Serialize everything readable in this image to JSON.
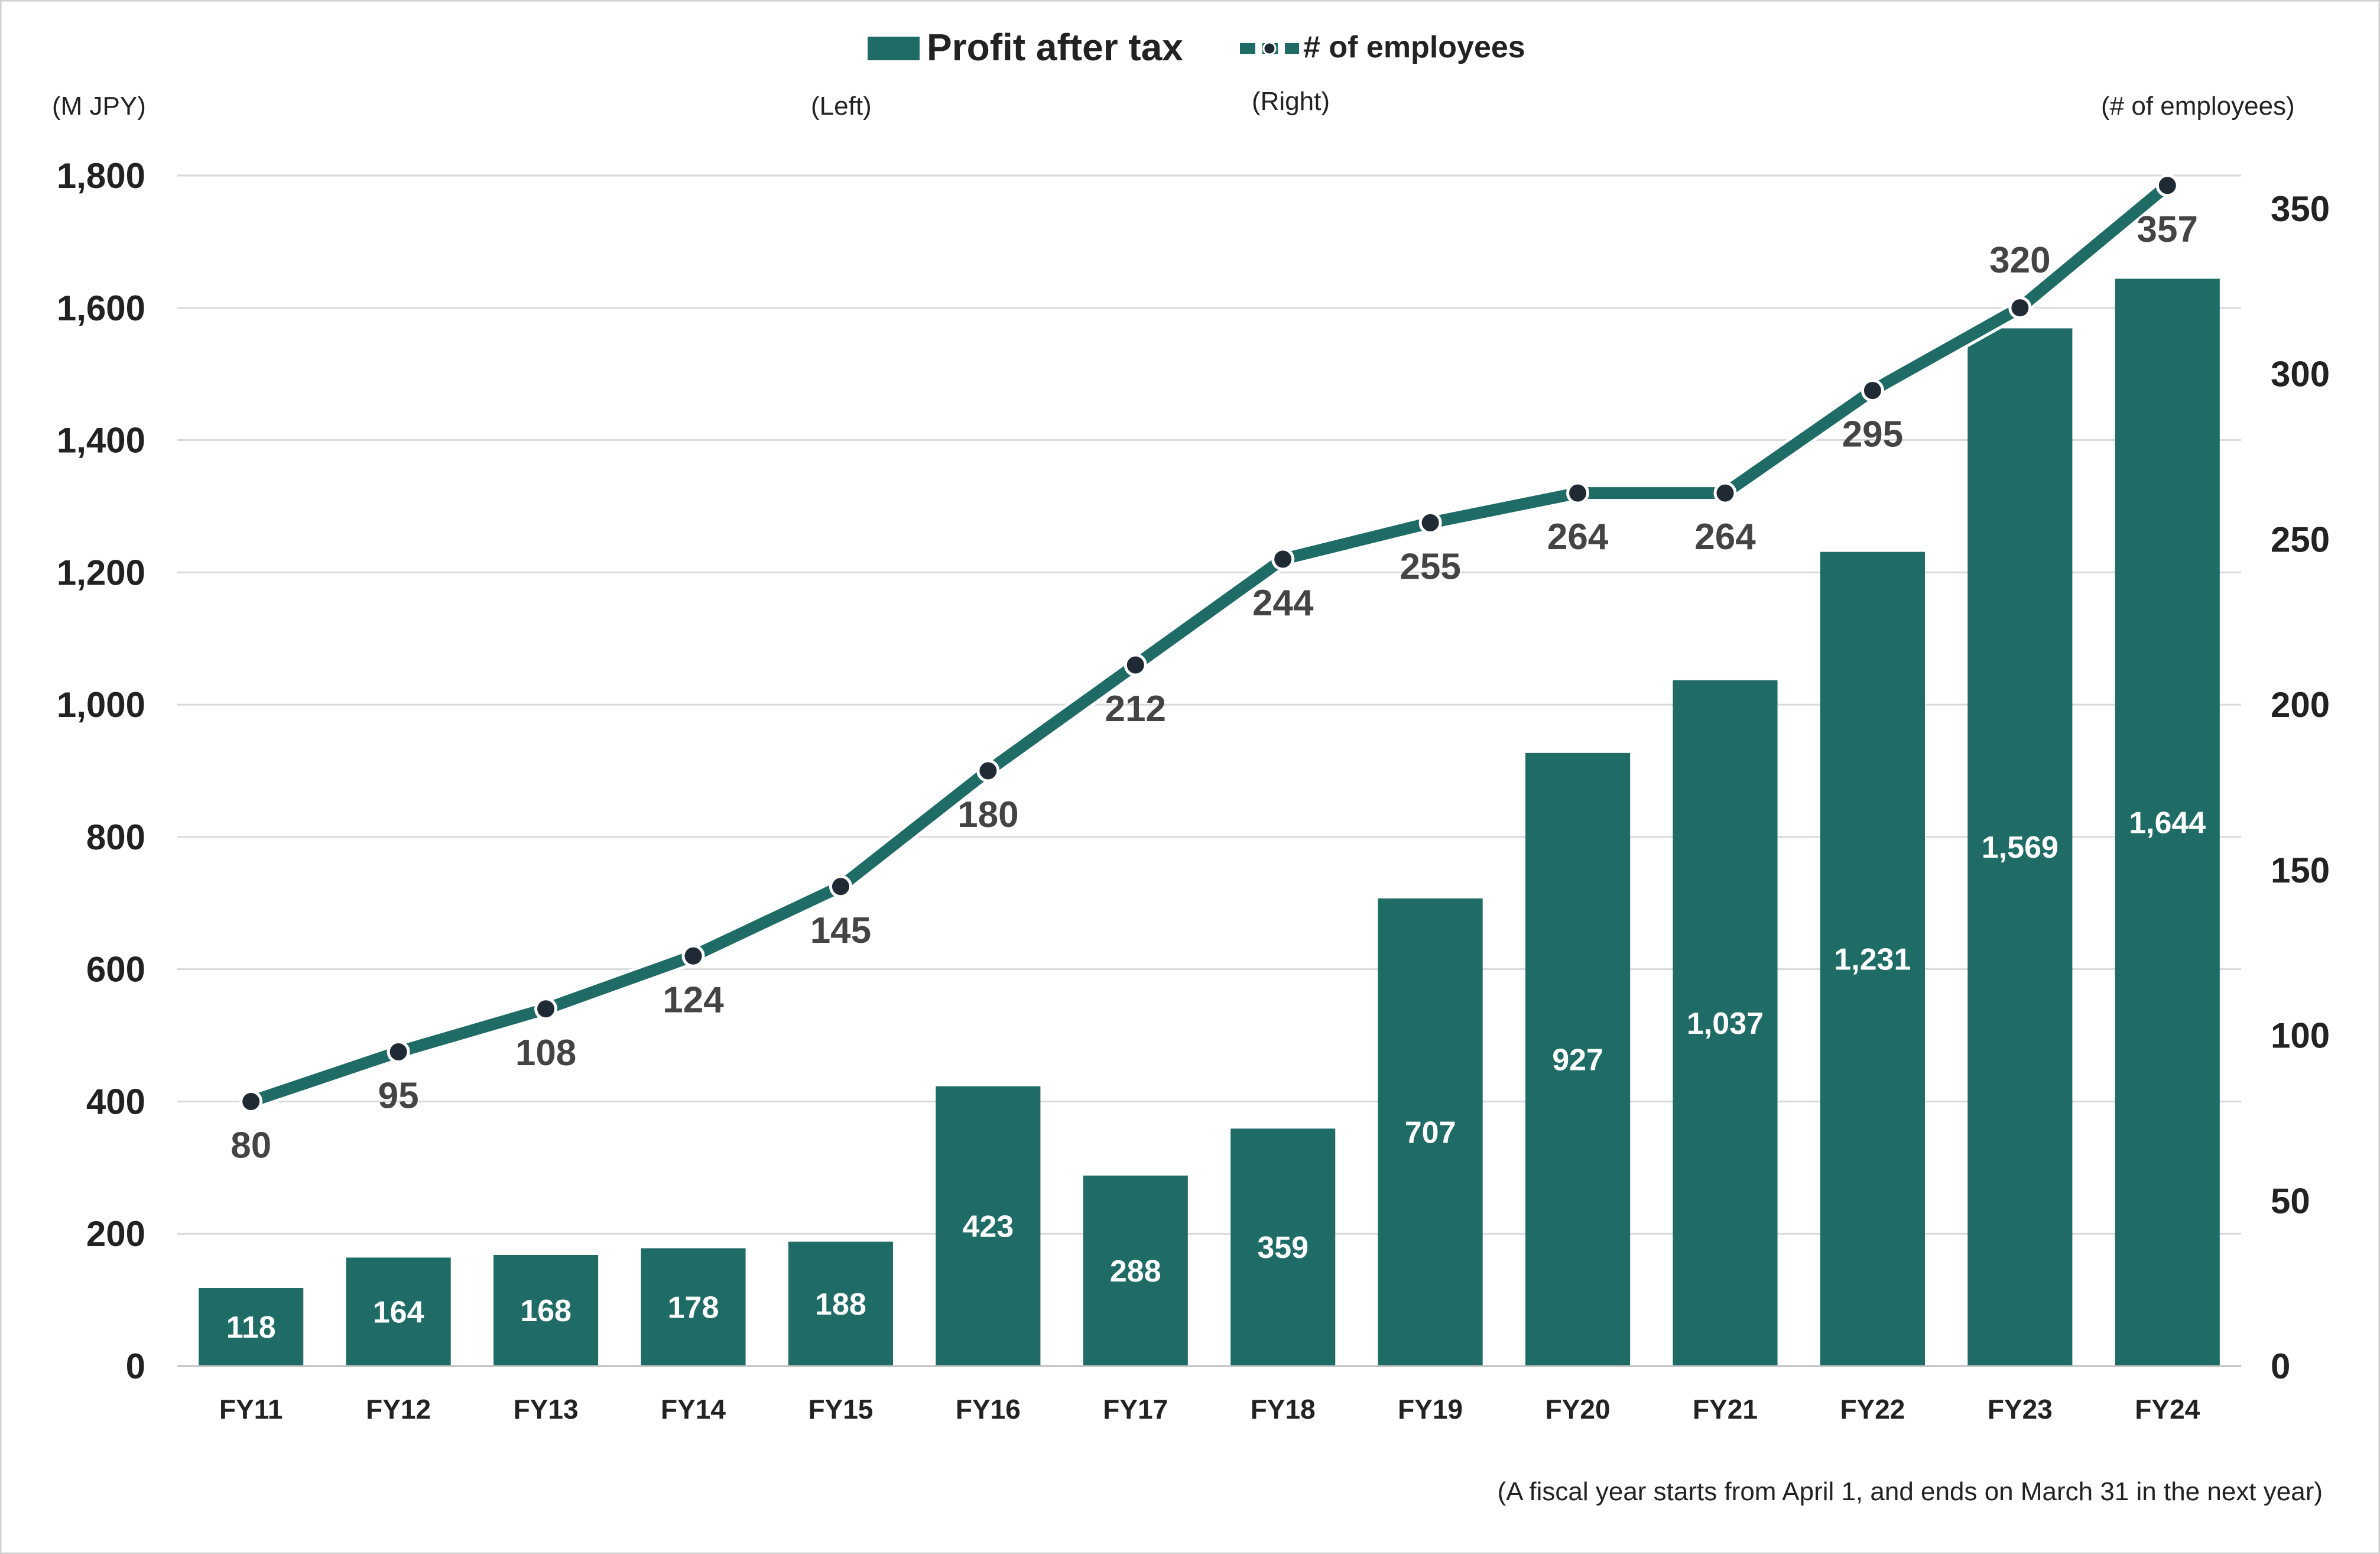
{
  "colors": {
    "bar": "#1f6b65",
    "line": "#1f6b65",
    "marker": "#1f2a35",
    "grid": "#d9d9d9"
  },
  "legend": {
    "bar_label": "Profit after tax",
    "line_label": "# of employees"
  },
  "units": {
    "left": "(M JPY)",
    "left_tag": "(Left)",
    "right_tag": "(Right)",
    "right": "(# of employees)"
  },
  "note": "(A fiscal year starts from April 1, and ends on March 31 in the next year)",
  "chart_data": {
    "type": "bar",
    "categories": [
      "FY11",
      "FY12",
      "FY13",
      "FY14",
      "FY15",
      "FY16",
      "FY17",
      "FY18",
      "FY19",
      "FY20",
      "FY21",
      "FY22",
      "FY23",
      "FY24"
    ],
    "series": [
      {
        "name": "Profit after tax",
        "type": "bar",
        "axis": "left",
        "values": [
          118,
          164,
          168,
          178,
          188,
          423,
          288,
          359,
          707,
          927,
          1037,
          1231,
          1569,
          1644
        ],
        "labels": [
          "118",
          "164",
          "168",
          "178",
          "188",
          "423",
          "288",
          "359",
          "707",
          "927",
          "1,037",
          "1,231",
          "1,569",
          "1,644"
        ]
      },
      {
        "name": "# of employees",
        "type": "line",
        "axis": "right",
        "values": [
          80,
          95,
          108,
          124,
          145,
          180,
          212,
          244,
          255,
          264,
          264,
          295,
          320,
          357
        ],
        "labels": [
          "80",
          "95",
          "108",
          "124",
          "145",
          "180",
          "212",
          "244",
          "255",
          "264",
          "264",
          "295",
          "320",
          "357"
        ]
      }
    ],
    "ylim_left": [
      0,
      1800
    ],
    "yticks_left": [
      "0",
      "200",
      "400",
      "600",
      "800",
      "1,000",
      "1,200",
      "1,400",
      "1,600",
      "1,800"
    ],
    "ylim_right": [
      0,
      360
    ],
    "yticks_right": [
      "0",
      "50",
      "100",
      "150",
      "200",
      "250",
      "300",
      "350"
    ],
    "grid": true,
    "legend_position": "top-center"
  }
}
